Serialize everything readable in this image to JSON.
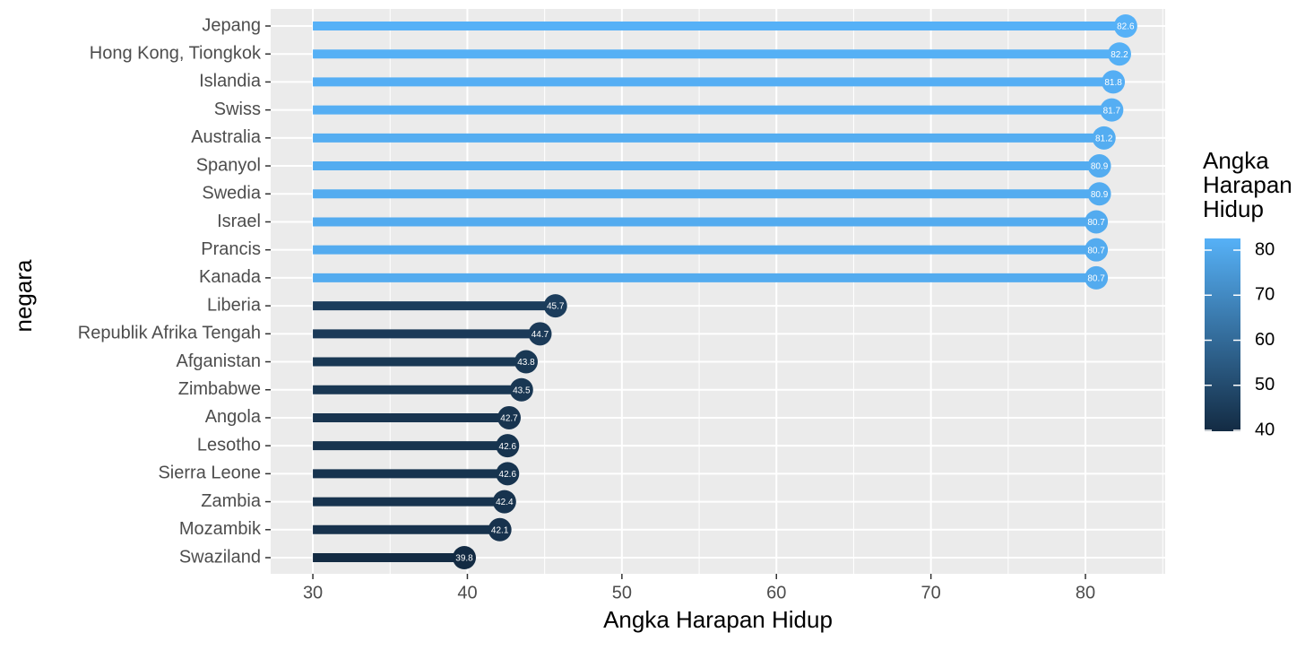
{
  "chart_data": {
    "type": "lollipop",
    "x_label": "Angka Harapan Hidup",
    "y_label": "negara",
    "categories": [
      "Jepang",
      "Hong Kong, Tiongkok",
      "Islandia",
      "Swiss",
      "Australia",
      "Spanyol",
      "Swedia",
      "Israel",
      "Prancis",
      "Kanada",
      "Liberia",
      "Republik Afrika Tengah",
      "Afganistan",
      "Zimbabwe",
      "Angola",
      "Lesotho",
      "Sierra Leone",
      "Zambia",
      "Mozambik",
      "Swaziland"
    ],
    "values": [
      82.6,
      82.2,
      81.8,
      81.7,
      81.2,
      80.9,
      80.9,
      80.7,
      80.7,
      80.7,
      45.7,
      44.7,
      43.8,
      43.5,
      42.7,
      42.6,
      42.6,
      42.4,
      42.1,
      39.8
    ],
    "xlim": [
      27.27,
      85.16
    ],
    "xticks": [
      30,
      40,
      50,
      60,
      70,
      80
    ],
    "xminor": [
      35,
      45,
      55,
      65,
      75,
      85
    ],
    "grid": true,
    "legend": {
      "title": "Angka Harapan Hidup",
      "lim": [
        39.8,
        82.6
      ],
      "ticks": [
        40,
        50,
        60,
        70,
        80
      ],
      "low": "#132B43",
      "high": "#56B1F7"
    }
  }
}
